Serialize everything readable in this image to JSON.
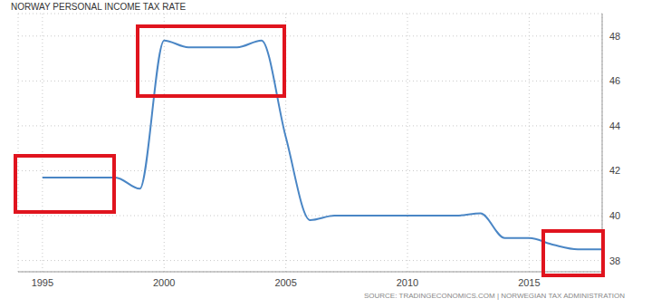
{
  "chart_data": {
    "type": "line",
    "title": "NORWAY PERSONAL INCOME TAX RATE",
    "source": "SOURCE: TRADINGECONOMICS.COM | NORWEGIAN TAX ADMINISTRATION",
    "x": [
      1995,
      1996,
      1997,
      1998,
      1999,
      2000,
      2001,
      2002,
      2003,
      2004,
      2005,
      2006,
      2007,
      2008,
      2009,
      2010,
      2011,
      2012,
      2013,
      2014,
      2015,
      2016,
      2017,
      2018
    ],
    "values": [
      41.7,
      41.7,
      41.7,
      41.7,
      41.2,
      47.8,
      47.5,
      47.5,
      47.5,
      47.8,
      43.5,
      39.8,
      40,
      40,
      40,
      40,
      40,
      40,
      40.1,
      39,
      39,
      38.7,
      38.5,
      38.5
    ],
    "color": "#4a86c5",
    "xlim": [
      1994,
      2018
    ],
    "xticks": [
      1995,
      2000,
      2005,
      2010,
      2015
    ],
    "ylim": [
      37.5,
      49
    ],
    "yticks": [
      38,
      40,
      42,
      44,
      46,
      48
    ],
    "grid": true
  }
}
